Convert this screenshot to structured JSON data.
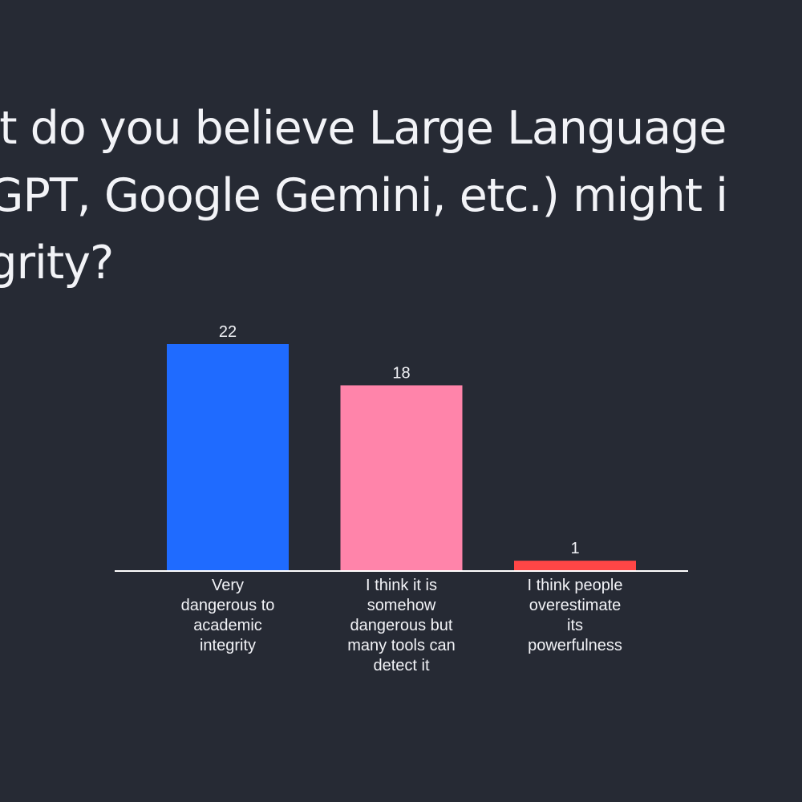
{
  "title_lines": [
    "ent do you believe Large Language",
    "atGPT, Google Gemini, etc.) might i",
    "tegrity?"
  ],
  "colors": {
    "background": "#262a34",
    "text": "#f2f3f7",
    "axis": "#ffffff"
  },
  "chart_data": {
    "type": "bar",
    "categories": [
      [
        "Very",
        "dangerous to",
        "academic",
        "integrity"
      ],
      [
        "I think it is",
        "somehow",
        "dangerous but",
        "many tools can",
        "detect it"
      ],
      [
        "I think people",
        "overestimate",
        "its",
        "powerfulness"
      ]
    ],
    "values": [
      22,
      18,
      1
    ],
    "colors": [
      "#1f6bff",
      "#ff84aa",
      "#ff4646"
    ],
    "ylim": [
      0,
      22
    ],
    "grid": false,
    "legend": "none"
  }
}
